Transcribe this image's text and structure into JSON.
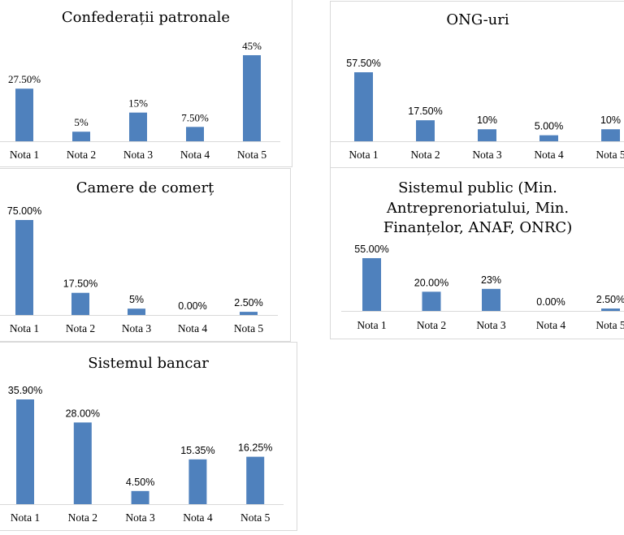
{
  "bar_color": "#4F81BD",
  "axis_color": "#d9d9d9",
  "chart_data": [
    {
      "type": "bar",
      "title": "Confederații patronale",
      "categories": [
        "Nota 1",
        "Nota 2",
        "Nota 3",
        "Nota 4",
        "Nota 5"
      ],
      "values": [
        27.5,
        5,
        15,
        7.5,
        45
      ],
      "labels": [
        "27.50%",
        "5%",
        "15%",
        "7.50%",
        "45%"
      ],
      "xlabel": "",
      "ylabel": "",
      "unit": "%",
      "grid": false,
      "legend": "none"
    },
    {
      "type": "bar",
      "title": "ONG-uri",
      "categories": [
        "Nota 1",
        "Nota 2",
        "Nota 3",
        "Nota 4",
        "Nota 5"
      ],
      "values": [
        57.5,
        17.5,
        10,
        5,
        10
      ],
      "labels": [
        "57.50%",
        "17.50%",
        "10%",
        "5.00%",
        "10%"
      ],
      "xlabel": "",
      "ylabel": "",
      "unit": "%",
      "grid": false,
      "legend": "none"
    },
    {
      "type": "bar",
      "title": "Camere de comerț",
      "categories": [
        "Nota 1",
        "Nota 2",
        "Nota 3",
        "Nota 4",
        "Nota 5"
      ],
      "values": [
        75,
        17.5,
        5,
        0,
        2.5
      ],
      "labels": [
        "75.00%",
        "17.50%",
        "5%",
        "0.00%",
        "2.50%"
      ],
      "xlabel": "",
      "ylabel": "",
      "unit": "%",
      "grid": false,
      "legend": "none"
    },
    {
      "type": "bar",
      "title": "Sistemul public (Min.\nAntreprenoriatului, Min.\nFinanțelor, ANAF, ONRC)",
      "categories": [
        "Nota 1",
        "Nota 2",
        "Nota 3",
        "Nota 4",
        "Nota 5"
      ],
      "values": [
        55,
        20,
        23,
        0,
        2.5
      ],
      "labels": [
        "55.00%",
        "20.00%",
        "23%",
        "0.00%",
        "2.50%"
      ],
      "xlabel": "",
      "ylabel": "",
      "unit": "%",
      "grid": false,
      "legend": "none"
    },
    {
      "type": "bar",
      "title": "Sistemul bancar",
      "categories": [
        "Nota 1",
        "Nota 2",
        "Nota 3",
        "Nota 4",
        "Nota 5"
      ],
      "values": [
        35.9,
        28,
        4.5,
        15.35,
        16.25
      ],
      "labels": [
        "35.90%",
        "28.00%",
        "4.50%",
        "15.35%",
        "16.25%"
      ],
      "xlabel": "",
      "ylabel": "",
      "unit": "%",
      "grid": false,
      "legend": "none"
    }
  ]
}
